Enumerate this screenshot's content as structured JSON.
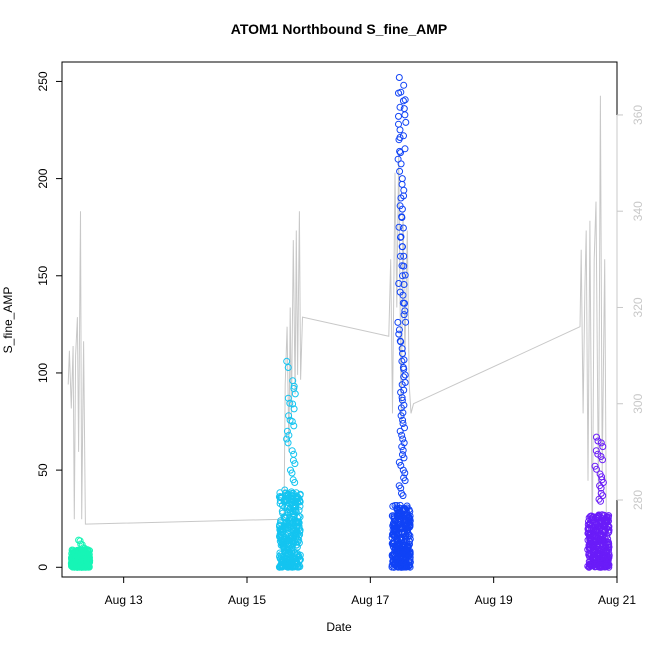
{
  "chart_data": {
    "type": "scatter",
    "title": "ATOM1 Northbound S_fine_AMP",
    "xlabel": "Date",
    "ylabel": "S_fine_AMP",
    "x_ticks": [
      "Aug 13",
      "Aug 15",
      "Aug 17",
      "Aug 19",
      "Aug 21"
    ],
    "x_range_days": [
      12.0,
      21.0
    ],
    "x_tick_days": [
      13,
      15,
      17,
      19,
      21
    ],
    "y_left": {
      "ticks": [
        0,
        50,
        100,
        150,
        200,
        250
      ],
      "range": [
        -5,
        260
      ]
    },
    "y_right": {
      "ticks": [
        280,
        300,
        320,
        340,
        360
      ],
      "range": [
        264,
        371
      ],
      "color": "#c8c8c8"
    },
    "grid": false,
    "clusters": [
      {
        "center_day": 12.3,
        "width_days": 0.3,
        "color": "#17f5b6",
        "max": 15,
        "dense_max": 9,
        "extras": [
          14,
          12,
          10
        ]
      },
      {
        "center_day": 15.7,
        "width_days": 0.35,
        "color": "#14c4f0",
        "max": 106,
        "dense_max": 40,
        "extras": [
          106,
          96,
          92,
          87,
          84,
          78,
          75,
          70,
          66,
          60,
          55,
          50,
          45
        ]
      },
      {
        "center_day": 17.5,
        "width_days": 0.3,
        "color": "#1043f6",
        "max": 252,
        "dense_max": 32,
        "extras": [
          252,
          248,
          244,
          240,
          236,
          232,
          228,
          222,
          220,
          214,
          210,
          200,
          197,
          190,
          186,
          180,
          175,
          170,
          165,
          160,
          155,
          150,
          146,
          140,
          136,
          130,
          126,
          120,
          116,
          110,
          106,
          102,
          98,
          94,
          90,
          86,
          82,
          78,
          74,
          70,
          66,
          62,
          58,
          54,
          50,
          46,
          42,
          38
        ]
      },
      {
        "center_day": 20.7,
        "width_days": 0.35,
        "color": "#6a1cf8",
        "max": 67,
        "dense_max": 27,
        "extras": [
          67,
          64,
          60,
          57,
          52,
          48,
          45,
          42,
          38,
          35
        ]
      }
    ],
    "right_series": {
      "color": "#c8c8c8",
      "points_day_value": [
        [
          12.1,
          304
        ],
        [
          12.12,
          311
        ],
        [
          12.15,
          299
        ],
        [
          12.18,
          312
        ],
        [
          12.2,
          276
        ],
        [
          12.22,
          310
        ],
        [
          12.25,
          318
        ],
        [
          12.27,
          290
        ],
        [
          12.3,
          340
        ],
        [
          12.32,
          276
        ],
        [
          12.35,
          313
        ],
        [
          12.38,
          275
        ],
        [
          15.6,
          276
        ],
        [
          15.62,
          304
        ],
        [
          15.65,
          316
        ],
        [
          15.68,
          290
        ],
        [
          15.7,
          320
        ],
        [
          15.72,
          297
        ],
        [
          15.75,
          334
        ],
        [
          15.78,
          302
        ],
        [
          15.8,
          336
        ],
        [
          15.82,
          306
        ],
        [
          15.85,
          340
        ],
        [
          15.87,
          305
        ],
        [
          15.9,
          318
        ],
        [
          17.3,
          314
        ],
        [
          17.33,
          330
        ],
        [
          17.36,
          298
        ],
        [
          17.4,
          348
        ],
        [
          17.43,
          320
        ],
        [
          17.46,
          352
        ],
        [
          17.5,
          296
        ],
        [
          17.53,
          340
        ],
        [
          17.56,
          310
        ],
        [
          17.6,
          336
        ],
        [
          17.63,
          304
        ],
        [
          17.66,
          298
        ],
        [
          17.7,
          300
        ],
        [
          20.4,
          316
        ],
        [
          20.42,
          332
        ],
        [
          20.45,
          298
        ],
        [
          20.48,
          324
        ],
        [
          20.5,
          336
        ],
        [
          20.53,
          284
        ],
        [
          20.56,
          338
        ],
        [
          20.6,
          270
        ],
        [
          20.63,
          330
        ],
        [
          20.66,
          342
        ],
        [
          20.7,
          280
        ],
        [
          20.73,
          364
        ],
        [
          20.76,
          286
        ],
        [
          20.8,
          330
        ],
        [
          20.83,
          270
        ]
      ]
    }
  }
}
